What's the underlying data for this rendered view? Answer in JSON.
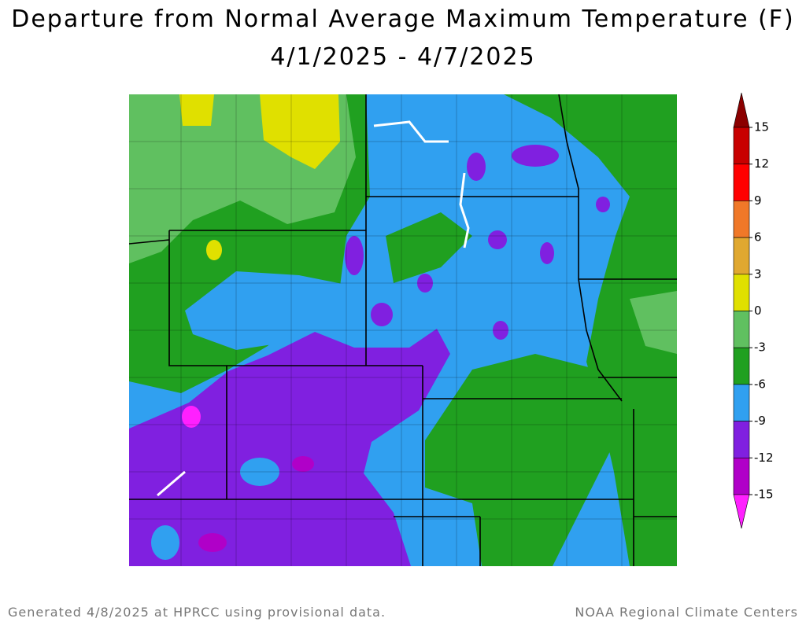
{
  "title": "Departure from Normal Average Maximum Temperature (F)",
  "date_range": "4/1/2025 - 4/7/2025",
  "legend": {
    "ticks": [
      15,
      12,
      9,
      6,
      3,
      0,
      -3,
      -6,
      -9,
      -12,
      -15
    ],
    "colors": [
      "#8b0000",
      "#c80000",
      "#ff0000",
      "#f07828",
      "#e0a830",
      "#e0e000",
      "#60c060",
      "#20a020",
      "#30a0f0",
      "#8020e0",
      "#b000c8",
      "#ff20ff"
    ]
  },
  "footer_left": "Generated 4/8/2025 at HPRCC using provisional data.",
  "footer_right": "NOAA Regional Climate Centers"
}
